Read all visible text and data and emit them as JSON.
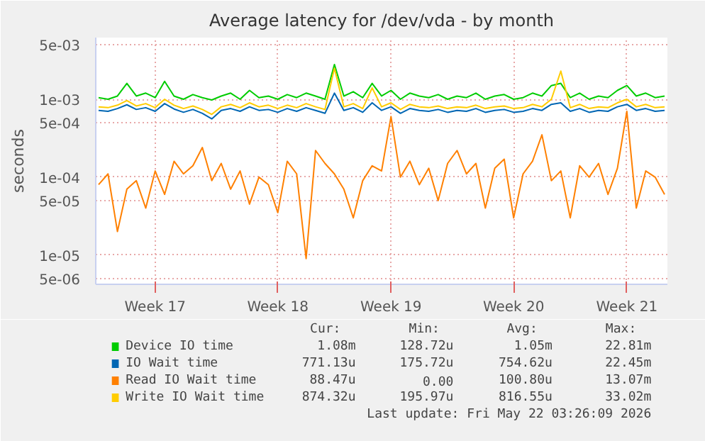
{
  "chart_data": {
    "type": "line",
    "title": "Average latency for /dev/vda - by month",
    "ylabel": "seconds",
    "categories": [
      null,
      null,
      null,
      null,
      null,
      null,
      "Week 17",
      null,
      null,
      null,
      null,
      null,
      null,
      null,
      null,
      null,
      null,
      null,
      null,
      "Week 18",
      null,
      null,
      null,
      null,
      null,
      null,
      null,
      null,
      null,
      null,
      null,
      "Week 19",
      null,
      null,
      null,
      null,
      null,
      null,
      null,
      null,
      null,
      null,
      null,
      null,
      "Week 20",
      null,
      null,
      null,
      null,
      null,
      null,
      null,
      null,
      null,
      null,
      null,
      "Week 21",
      null,
      null,
      null,
      null
    ],
    "series": [
      {
        "name": "Device IO time",
        "color": "#00cc00",
        "values": [
          0.00105,
          0.001,
          0.0011,
          0.0016,
          0.0011,
          0.0012,
          0.00105,
          0.0017,
          0.0011,
          0.001,
          0.00115,
          0.00105,
          0.00098,
          0.0011,
          0.0012,
          0.001,
          0.0013,
          0.00105,
          0.0011,
          0.001,
          0.00115,
          0.00105,
          0.0012,
          0.0011,
          0.001,
          0.0028,
          0.0011,
          0.00125,
          0.00105,
          0.0016,
          0.0011,
          0.0013,
          0.001,
          0.0012,
          0.0011,
          0.00105,
          0.00115,
          0.001,
          0.0011,
          0.00105,
          0.0012,
          0.001,
          0.0011,
          0.00115,
          0.001,
          0.00105,
          0.0012,
          0.0011,
          0.0015,
          0.0016,
          0.00105,
          0.0012,
          0.001,
          0.0011,
          0.00105,
          0.0013,
          0.0015,
          0.0011,
          0.0012,
          0.00105,
          0.0011
        ]
      },
      {
        "name": "IO Wait time",
        "color": "#0066b3",
        "values": [
          0.00072,
          0.0007,
          0.00076,
          0.00085,
          0.00074,
          0.00078,
          0.0007,
          0.00088,
          0.00075,
          0.00068,
          0.00074,
          0.00066,
          0.00056,
          0.00072,
          0.00076,
          0.0007,
          0.0008,
          0.00072,
          0.00074,
          0.00068,
          0.00076,
          0.0007,
          0.00078,
          0.00072,
          0.00066,
          0.0012,
          0.00072,
          0.00078,
          0.00068,
          0.0009,
          0.00072,
          0.0008,
          0.00066,
          0.00076,
          0.00072,
          0.0007,
          0.00074,
          0.00068,
          0.00072,
          0.0007,
          0.00076,
          0.00068,
          0.00072,
          0.00074,
          0.00068,
          0.0007,
          0.00076,
          0.00072,
          0.00086,
          0.0009,
          0.0007,
          0.00076,
          0.00068,
          0.00072,
          0.0007,
          0.0008,
          0.00086,
          0.00072,
          0.00076,
          0.0007,
          0.00072
        ]
      },
      {
        "name": "Read IO Wait time",
        "color": "#ff8000",
        "values": [
          8e-05,
          0.00011,
          2e-05,
          7e-05,
          9e-05,
          4e-05,
          0.00012,
          6e-05,
          0.00016,
          0.00011,
          0.00014,
          0.00024,
          9e-05,
          0.00015,
          7e-05,
          0.00012,
          4.5e-05,
          0.0001,
          8e-05,
          3.5e-05,
          0.00016,
          0.00011,
          9e-06,
          0.00022,
          0.00015,
          0.00011,
          7e-05,
          3e-05,
          9e-05,
          0.00014,
          0.00012,
          0.0006,
          0.0001,
          0.00016,
          8e-05,
          0.00013,
          5e-05,
          0.00015,
          0.00022,
          0.00011,
          0.00015,
          4e-05,
          0.00013,
          0.00017,
          3e-05,
          0.00011,
          0.00016,
          0.00035,
          9e-05,
          0.00012,
          3e-05,
          0.00014,
          0.0001,
          0.00015,
          6e-05,
          0.00013,
          0.0007,
          4e-05,
          0.00012,
          0.0001,
          6e-05
        ]
      },
      {
        "name": "Write IO Wait time",
        "color": "#ffcc00",
        "values": [
          0.0008,
          0.00078,
          0.00084,
          0.00096,
          0.00082,
          0.00088,
          0.00078,
          0.001,
          0.00084,
          0.00076,
          0.00082,
          0.00074,
          0.00064,
          0.0008,
          0.00086,
          0.00078,
          0.0009,
          0.0008,
          0.00084,
          0.00076,
          0.00084,
          0.00078,
          0.00088,
          0.0008,
          0.00074,
          0.0025,
          0.0008,
          0.00088,
          0.00076,
          0.0014,
          0.0008,
          0.0009,
          0.00074,
          0.00086,
          0.0008,
          0.00078,
          0.00082,
          0.00076,
          0.0008,
          0.00078,
          0.00084,
          0.00076,
          0.0008,
          0.00082,
          0.00076,
          0.00078,
          0.00086,
          0.0008,
          0.001,
          0.0023,
          0.00078,
          0.00086,
          0.00076,
          0.0008,
          0.00078,
          0.0009,
          0.001,
          0.0008,
          0.00086,
          0.00078,
          0.0008
        ]
      }
    ],
    "log": "y",
    "ylim": [
      4.2e-06,
      0.0062
    ],
    "yticks": [
      {
        "value": 5e-06,
        "label": "5e-06"
      },
      {
        "value": 1e-05,
        "label": "1e-05"
      },
      {
        "value": 5e-05,
        "label": "5e-05"
      },
      {
        "value": 0.0001,
        "label": "1e-04"
      },
      {
        "value": 0.0005,
        "label": "5e-04"
      },
      {
        "value": 0.001,
        "label": "1e-03"
      },
      {
        "value": 0.005,
        "label": "5e-03"
      }
    ],
    "grid": true,
    "legend": "bottom",
    "line_style": "solid",
    "annotations": [
      "Cur:",
      "Min:",
      "Avg:",
      "Max:",
      "1.08m",
      "128.72u",
      "1.05m",
      "22.81m",
      "771.13u",
      "175.72u",
      "754.62u",
      "22.45m",
      "88.47u",
      "0.00",
      "100.80u",
      "13.07m",
      "874.32u",
      "195.97u",
      "816.55u",
      "33.02m",
      "Last update: Fri May 22 03:26:09 2026"
    ]
  }
}
